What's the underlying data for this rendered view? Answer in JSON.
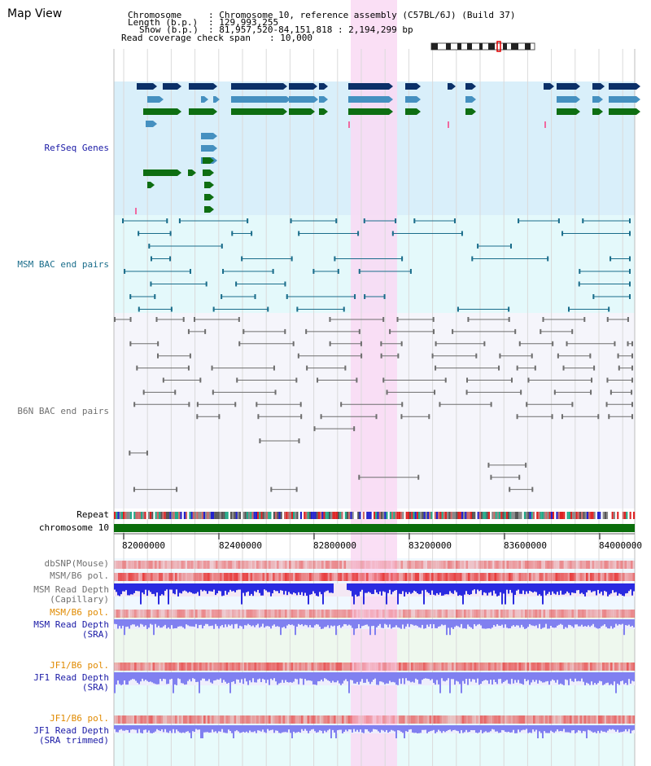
{
  "title": "Map View",
  "info": {
    "chromosome_key": "Chromosome",
    "chromosome_val": ": Chromosome 10, reference assembly (C57BL/6J) (Build 37)",
    "length_key": "Length (b.p.)",
    "length_val": ": 129,993,255",
    "show_key": "Show (b.p.)",
    "show_val": ": 81,957,520-84,151,818 : 2,194,299 bp",
    "coverage_key": "Read coverage check span",
    "coverage_val": ": 10,000"
  },
  "tracks": {
    "refseq": "RefSeq Genes",
    "msm_bac": "MSM BAC end pairs",
    "b6n_bac": "B6N BAC end pairs",
    "repeat": "Repeat",
    "chromosome": "chromosome 10",
    "dbsnp": "dbSNP(Mouse)",
    "msm_b6_pol": "MSM/B6 pol.",
    "msm_depth_1": "MSM Read Depth",
    "msm_depth_2": "(Capillary)",
    "msm_b6_pol_sra": "MSM/B6 pol.",
    "msm_sra_1": "MSM Read Depth",
    "msm_sra_2": "(SRA)",
    "jf1_pol": "JF1/B6 pol.",
    "jf1_sra_1": "JF1 Read Depth",
    "jf1_sra_2": "(SRA)",
    "jf1_pol_2": "JF1/B6 pol.",
    "jf1_trim_1": "JF1 Read Depth",
    "jf1_trim_2": "(SRA trimmed)"
  },
  "axis": {
    "ticks": [
      "82000000",
      "82400000",
      "82800000",
      "83200000",
      "83600000",
      "84000000"
    ]
  },
  "colors": {
    "highlight": "#f9d9f3",
    "refseq_bg": "#d9effa",
    "msm_bg": "#e4f9fb",
    "b6n_bg": "#f3f3f9",
    "gene_dark": "#0b3068",
    "gene_mid": "#4590c0",
    "gene_green": "#0e6e12",
    "msm_pair": "#1a6d8b",
    "b6n_pair": "#6e6e6e",
    "chromosome_bar": "#0b6e0b",
    "label_blue": "#1a1aa6",
    "label_teal": "#1a6d8b",
    "label_gray": "#707070",
    "label_orange": "#e08a00",
    "depth_blue": "#2a2ae0",
    "depth_light": "#8080f0"
  }
}
